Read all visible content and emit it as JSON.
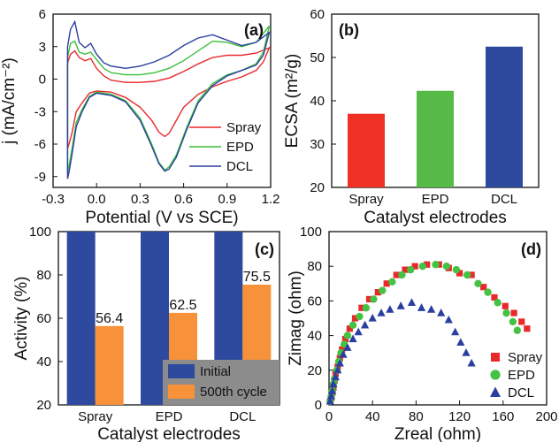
{
  "chart_data": [
    {
      "panel": "(a)",
      "type": "line",
      "xlabel": "Potential (V vs SCE)",
      "ylabel": "j (mA/cm⁻²)",
      "xlim": [
        -0.3,
        1.2
      ],
      "ylim": [
        -10,
        6
      ],
      "xticks": [
        "-0.3",
        "0.0",
        "0.3",
        "0.6",
        "0.9",
        "1.2"
      ],
      "yticks": [
        "6",
        "3",
        "0",
        "-3",
        "-6",
        "-9"
      ],
      "legend_position": "bottom-right",
      "series": [
        {
          "name": "Spray",
          "color": "#e8282b",
          "anodic": [
            [
              -0.2,
              1.5
            ],
            [
              -0.18,
              2.3
            ],
            [
              -0.15,
              2.6
            ],
            [
              -0.12,
              2.0
            ],
            [
              -0.08,
              1.7
            ],
            [
              -0.04,
              1.9
            ],
            [
              0.0,
              1.0
            ],
            [
              0.05,
              0.3
            ],
            [
              0.1,
              -0.1
            ],
            [
              0.2,
              -0.3
            ],
            [
              0.3,
              -0.3
            ],
            [
              0.4,
              -0.2
            ],
            [
              0.5,
              0.1
            ],
            [
              0.6,
              0.7
            ],
            [
              0.7,
              1.4
            ],
            [
              0.8,
              2.0
            ],
            [
              0.9,
              2.2
            ],
            [
              1.0,
              2.2
            ],
            [
              1.1,
              2.4
            ],
            [
              1.19,
              2.9
            ]
          ],
          "cathodic": [
            [
              1.19,
              2.9
            ],
            [
              1.15,
              1.6
            ],
            [
              1.1,
              0.8
            ],
            [
              1.0,
              0.2
            ],
            [
              0.9,
              -0.2
            ],
            [
              0.8,
              -0.7
            ],
            [
              0.7,
              -1.4
            ],
            [
              0.6,
              -2.6
            ],
            [
              0.55,
              -3.8
            ],
            [
              0.5,
              -5.0
            ],
            [
              0.47,
              -5.3
            ],
            [
              0.43,
              -4.9
            ],
            [
              0.38,
              -3.8
            ],
            [
              0.3,
              -2.6
            ],
            [
              0.2,
              -1.7
            ],
            [
              0.1,
              -1.2
            ],
            [
              0.0,
              -1.1
            ],
            [
              -0.05,
              -1.3
            ],
            [
              -0.1,
              -2.2
            ],
            [
              -0.14,
              -3.0
            ],
            [
              -0.17,
              -5.0
            ],
            [
              -0.19,
              -6.0
            ],
            [
              -0.2,
              -6.4
            ]
          ]
        },
        {
          "name": "EPD",
          "color": "#3cbf3c",
          "anodic": [
            [
              -0.2,
              2.0
            ],
            [
              -0.18,
              3.3
            ],
            [
              -0.15,
              3.5
            ],
            [
              -0.12,
              2.5
            ],
            [
              -0.08,
              2.3
            ],
            [
              -0.04,
              2.5
            ],
            [
              0.0,
              1.8
            ],
            [
              0.05,
              1.0
            ],
            [
              0.1,
              0.6
            ],
            [
              0.2,
              0.4
            ],
            [
              0.3,
              0.4
            ],
            [
              0.4,
              0.6
            ],
            [
              0.5,
              1.0
            ],
            [
              0.6,
              1.7
            ],
            [
              0.7,
              2.6
            ],
            [
              0.8,
              3.5
            ],
            [
              0.9,
              3.4
            ],
            [
              1.0,
              3.0
            ],
            [
              1.1,
              3.4
            ],
            [
              1.19,
              4.9
            ]
          ],
          "cathodic": [
            [
              1.19,
              4.9
            ],
            [
              1.15,
              2.5
            ],
            [
              1.1,
              1.4
            ],
            [
              1.0,
              0.8
            ],
            [
              0.9,
              0.4
            ],
            [
              0.8,
              -0.4
            ],
            [
              0.7,
              -2.0
            ],
            [
              0.62,
              -4.5
            ],
            [
              0.55,
              -7.0
            ],
            [
              0.5,
              -8.1
            ],
            [
              0.47,
              -8.4
            ],
            [
              0.43,
              -7.7
            ],
            [
              0.38,
              -6.0
            ],
            [
              0.3,
              -3.6
            ],
            [
              0.2,
              -2.0
            ],
            [
              0.1,
              -1.4
            ],
            [
              0.0,
              -1.2
            ],
            [
              -0.05,
              -1.6
            ],
            [
              -0.1,
              -2.8
            ],
            [
              -0.14,
              -4.0
            ],
            [
              -0.17,
              -6.5
            ],
            [
              -0.19,
              -8.0
            ],
            [
              -0.2,
              -8.6
            ]
          ]
        },
        {
          "name": "DCL",
          "color": "#2b3fa0",
          "anodic": [
            [
              -0.2,
              3.0
            ],
            [
              -0.18,
              4.6
            ],
            [
              -0.15,
              5.3
            ],
            [
              -0.12,
              3.4
            ],
            [
              -0.08,
              2.9
            ],
            [
              -0.04,
              3.3
            ],
            [
              0.0,
              2.3
            ],
            [
              0.05,
              1.5
            ],
            [
              0.1,
              1.2
            ],
            [
              0.2,
              1.0
            ],
            [
              0.3,
              1.2
            ],
            [
              0.4,
              1.6
            ],
            [
              0.5,
              2.2
            ],
            [
              0.6,
              3.1
            ],
            [
              0.7,
              3.8
            ],
            [
              0.8,
              4.1
            ],
            [
              0.9,
              3.6
            ],
            [
              1.0,
              3.1
            ],
            [
              1.1,
              3.4
            ],
            [
              1.19,
              4.3
            ]
          ],
          "cathodic": [
            [
              1.19,
              4.3
            ],
            [
              1.15,
              2.2
            ],
            [
              1.1,
              1.3
            ],
            [
              1.0,
              0.8
            ],
            [
              0.9,
              0.3
            ],
            [
              0.8,
              -0.6
            ],
            [
              0.7,
              -2.2
            ],
            [
              0.62,
              -4.7
            ],
            [
              0.55,
              -7.2
            ],
            [
              0.5,
              -8.3
            ],
            [
              0.47,
              -8.5
            ],
            [
              0.43,
              -7.8
            ],
            [
              0.38,
              -6.2
            ],
            [
              0.3,
              -3.8
            ],
            [
              0.2,
              -2.1
            ],
            [
              0.1,
              -1.5
            ],
            [
              0.0,
              -1.3
            ],
            [
              -0.05,
              -1.7
            ],
            [
              -0.1,
              -3.0
            ],
            [
              -0.14,
              -4.4
            ],
            [
              -0.17,
              -7.0
            ],
            [
              -0.19,
              -8.6
            ],
            [
              -0.2,
              -9.2
            ]
          ]
        }
      ]
    },
    {
      "panel": "(b)",
      "type": "bar",
      "xlabel": "Catalyst electrodes",
      "ylabel": "ECSA (m²/g)",
      "ylim": [
        20,
        60
      ],
      "yticks": [
        "20",
        "30",
        "40",
        "50",
        "60"
      ],
      "categories": [
        "Spray",
        "EPD",
        "DCL"
      ],
      "values": [
        37,
        42.3,
        52.5
      ],
      "colors": [
        "#ee3124",
        "#55bb46",
        "#2e4a9e"
      ]
    },
    {
      "panel": "(c)",
      "type": "bar",
      "xlabel": "Catalyst electrodes",
      "ylabel": "Activity (%)",
      "ylim": [
        20,
        100
      ],
      "yticks": [
        "20",
        "40",
        "60",
        "80",
        "100"
      ],
      "categories": [
        "Spray",
        "EPD",
        "DCL"
      ],
      "legend_position": "bottom-right",
      "series": [
        {
          "name": "Initial",
          "color": "#2e4a9e",
          "values": [
            100,
            100,
            100
          ],
          "labels": [
            "",
            "",
            ""
          ]
        },
        {
          "name": "500th cycle",
          "color": "#f7923a",
          "values": [
            56.4,
            62.5,
            75.5
          ],
          "labels": [
            "56.4",
            "62.5",
            "75.5"
          ]
        }
      ]
    },
    {
      "panel": "(d)",
      "type": "scatter",
      "xlabel": "Zreal (ohm)",
      "ylabel": "Zimag (ohm)",
      "xlim": [
        0,
        200
      ],
      "ylim": [
        0,
        100
      ],
      "xticks": [
        "0",
        "40",
        "80",
        "120",
        "160",
        "200"
      ],
      "yticks": [
        "0",
        "20",
        "40",
        "60",
        "80",
        "100"
      ],
      "legend_position": "bottom-right",
      "series": [
        {
          "name": "Spray",
          "marker": "square",
          "color": "#e8282b",
          "points": [
            [
              1,
              2
            ],
            [
              2,
              4
            ],
            [
              3,
              7
            ],
            [
              4,
              10
            ],
            [
              5,
              14
            ],
            [
              6,
              18
            ],
            [
              8,
              22
            ],
            [
              10,
              27
            ],
            [
              12,
              32
            ],
            [
              15,
              38
            ],
            [
              19,
              44
            ],
            [
              24,
              50
            ],
            [
              30,
              56
            ],
            [
              37,
              61
            ],
            [
              45,
              65
            ],
            [
              53,
              70
            ],
            [
              62,
              75
            ],
            [
              70,
              78
            ],
            [
              79,
              80
            ],
            [
              90,
              81
            ],
            [
              101,
              81
            ],
            [
              110,
              79
            ],
            [
              120,
              76
            ],
            [
              131,
              75
            ],
            [
              142,
              68
            ],
            [
              152,
              62
            ],
            [
              162,
              57
            ],
            [
              170,
              53
            ],
            [
              177,
              48
            ],
            [
              182,
              44
            ]
          ]
        },
        {
          "name": "EPD",
          "marker": "circle",
          "color": "#44c244",
          "points": [
            [
              1,
              2
            ],
            [
              2,
              5
            ],
            [
              3,
              8
            ],
            [
              4,
              12
            ],
            [
              5,
              15
            ],
            [
              7,
              20
            ],
            [
              9,
              25
            ],
            [
              11,
              30
            ],
            [
              14,
              35
            ],
            [
              17,
              40
            ],
            [
              22,
              46
            ],
            [
              28,
              51
            ],
            [
              34,
              56
            ],
            [
              41,
              61
            ],
            [
              49,
              66
            ],
            [
              58,
              71
            ],
            [
              67,
              75
            ],
            [
              75,
              78
            ],
            [
              86,
              80
            ],
            [
              98,
              81
            ],
            [
              108,
              80
            ],
            [
              117,
              78
            ],
            [
              127,
              75
            ],
            [
              137,
              70
            ],
            [
              146,
              65
            ],
            [
              155,
              59
            ],
            [
              163,
              53
            ],
            [
              169,
              48
            ],
            [
              173,
              43
            ]
          ]
        },
        {
          "name": "DCL",
          "marker": "triangle",
          "color": "#2b3fa0",
          "points": [
            [
              1,
              2
            ],
            [
              2,
              5
            ],
            [
              3,
              8
            ],
            [
              4,
              12
            ],
            [
              6,
              16
            ],
            [
              8,
              20
            ],
            [
              10,
              24
            ],
            [
              13,
              29
            ],
            [
              17,
              33
            ],
            [
              22,
              38
            ],
            [
              27,
              42
            ],
            [
              33,
              46
            ],
            [
              40,
              50
            ],
            [
              48,
              53
            ],
            [
              56,
              55
            ],
            [
              66,
              57
            ],
            [
              76,
              59
            ],
            [
              85,
              56
            ],
            [
              94,
              55
            ],
            [
              103,
              53
            ],
            [
              110,
              49
            ],
            [
              116,
              42
            ],
            [
              121,
              36
            ],
            [
              126,
              30
            ],
            [
              131,
              24
            ]
          ]
        }
      ]
    }
  ]
}
